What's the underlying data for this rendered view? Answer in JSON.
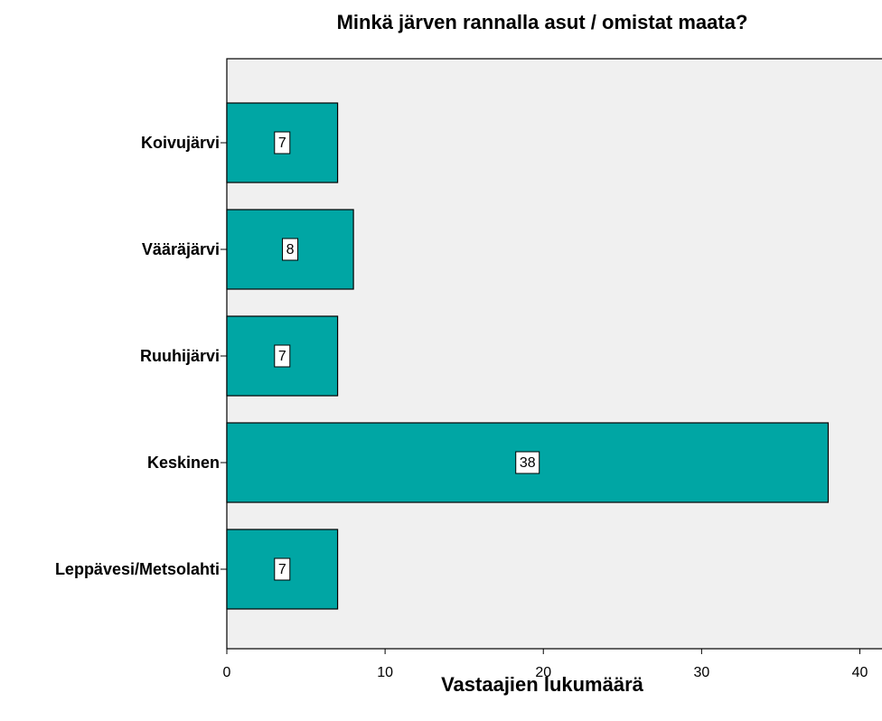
{
  "chart_data": {
    "type": "barh",
    "title": "Minkä järven rannalla asut / omistat maata?",
    "categories": [
      "Koivujärvi",
      "Vääräjärvi",
      "Ruuhijärvi",
      "Keskinen",
      "Leppävesi/Metsolahti"
    ],
    "values": [
      7,
      8,
      7,
      38,
      7
    ],
    "color": "#00a6a4",
    "xlabel": "Vastaajien lukumäärä",
    "xlim": [
      0,
      41.4
    ],
    "xticks": [
      0,
      10,
      20,
      30,
      40
    ],
    "grid": false
  }
}
